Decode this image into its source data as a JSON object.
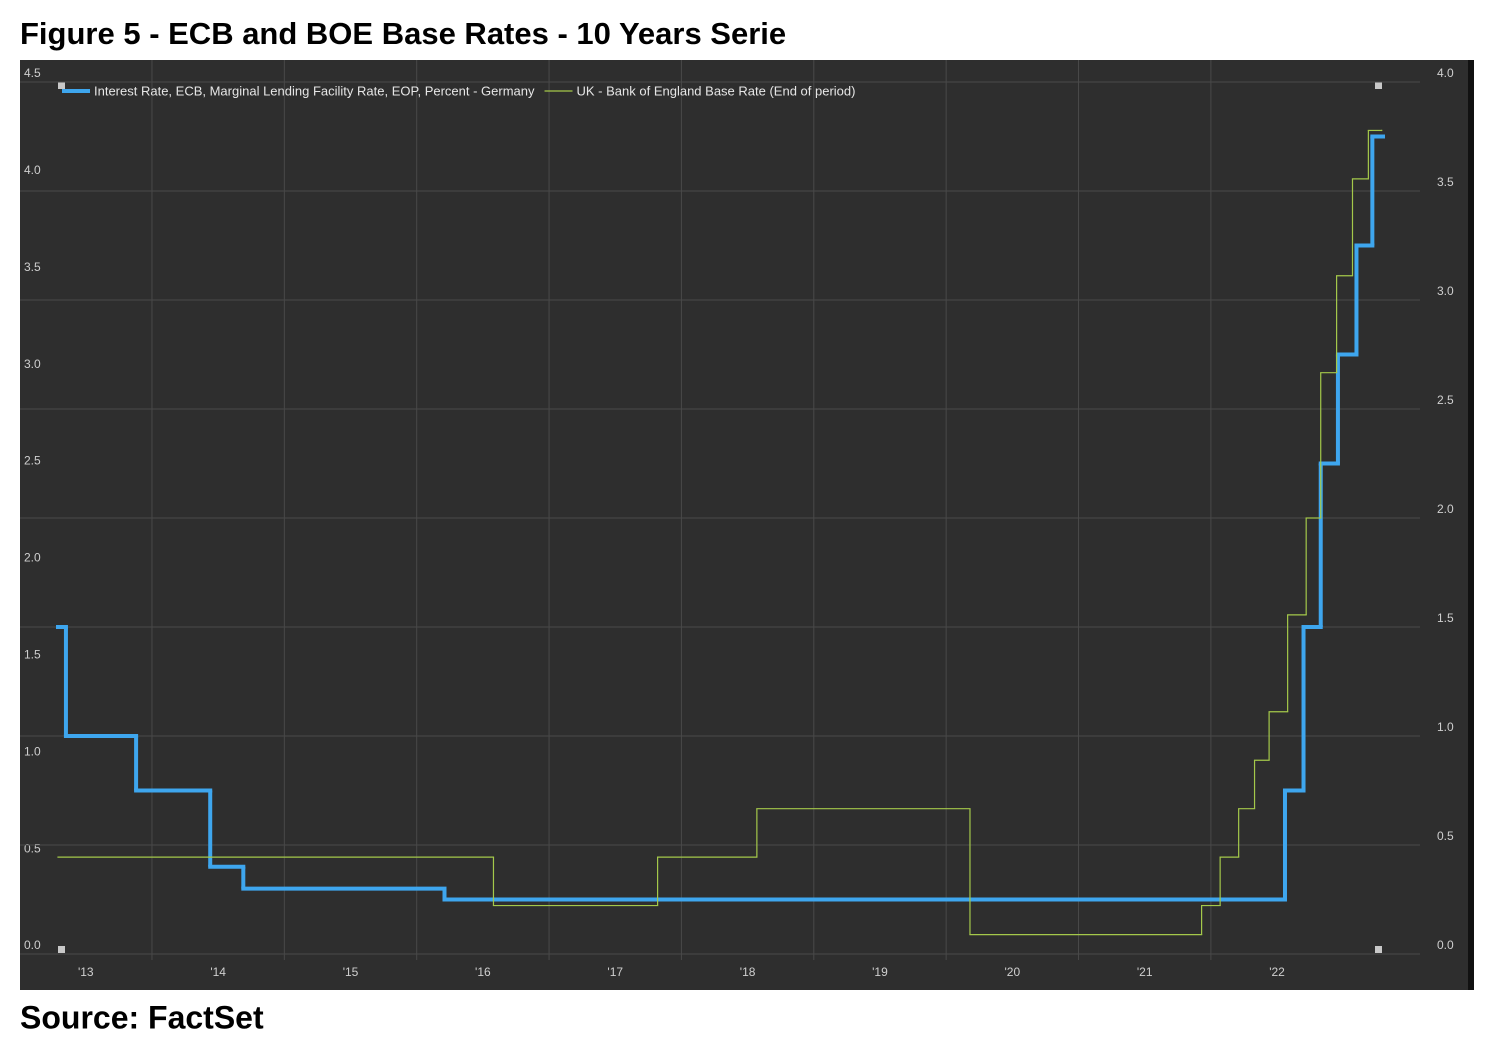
{
  "chart_data": {
    "type": "line",
    "step": true,
    "title": "Figure 5 - ECB and BOE Base Rates - 10 Years Serie",
    "source": "Source: FactSet",
    "grid": true,
    "xlim": [
      2013.29,
      2023.58
    ],
    "xticks": [
      {
        "value": 2013,
        "label": "'13"
      },
      {
        "value": 2014,
        "label": "'14"
      },
      {
        "value": 2015,
        "label": "'15"
      },
      {
        "value": 2016,
        "label": "'16"
      },
      {
        "value": 2017,
        "label": "'17"
      },
      {
        "value": 2018,
        "label": "'18"
      },
      {
        "value": 2019,
        "label": "'19"
      },
      {
        "value": 2020,
        "label": "'20"
      },
      {
        "value": 2021,
        "label": "'21"
      },
      {
        "value": 2022,
        "label": "'22"
      }
    ],
    "ylim": [
      0,
      4.5
    ],
    "yticks": [
      {
        "value": 0,
        "label": "0.0"
      },
      0.5,
      {
        "value": 1,
        "label": "1.0"
      },
      1.5,
      {
        "value": 2,
        "label": "2.0"
      },
      2.5,
      {
        "value": 3,
        "label": "3.0"
      },
      3.5,
      {
        "value": 4,
        "label": "4.0"
      },
      4.5
    ],
    "y2lim": [
      0,
      4.0
    ],
    "y2ticks": [
      {
        "value": 0,
        "label": "0.0"
      },
      0.5,
      {
        "value": 1,
        "label": "1.0"
      },
      1.5,
      {
        "value": 2,
        "label": "2.0"
      },
      2.5,
      {
        "value": 3,
        "label": "3.0"
      },
      3.5,
      {
        "value": 4,
        "label": "4.0"
      }
    ],
    "series": [
      {
        "name": "Interest Rate, ECB, Marginal Lending Facility Rate, EOP, Percent - Germany",
        "color": "#3ea6ee",
        "axis": "y2",
        "width": 4,
        "x": [
          2013.29,
          2013.35,
          2013.88,
          2014.44,
          2014.69,
          2016.21,
          2022.56,
          2022.7,
          2022.83,
          2022.96,
          2023.1,
          2023.22,
          2023.3
        ],
        "values": [
          1.5,
          1.0,
          0.75,
          0.4,
          0.3,
          0.25,
          0.75,
          1.5,
          2.25,
          2.75,
          3.25,
          3.75,
          3.75
        ]
      },
      {
        "name": "UK - Bank of England Base Rate (End of period)",
        "color": "#a4c84a",
        "axis": "y",
        "width": 1.2,
        "x": [
          2013.29,
          2016.58,
          2017.82,
          2018.57,
          2020.18,
          2021.93,
          2022.07,
          2022.21,
          2022.33,
          2022.44,
          2022.58,
          2022.72,
          2022.83,
          2022.95,
          2023.07,
          2023.19,
          2023.29
        ],
        "values": [
          0.5,
          0.25,
          0.5,
          0.75,
          0.1,
          0.25,
          0.5,
          0.75,
          1.0,
          1.25,
          1.75,
          2.25,
          3.0,
          3.5,
          4.0,
          4.25,
          4.25
        ]
      }
    ]
  }
}
